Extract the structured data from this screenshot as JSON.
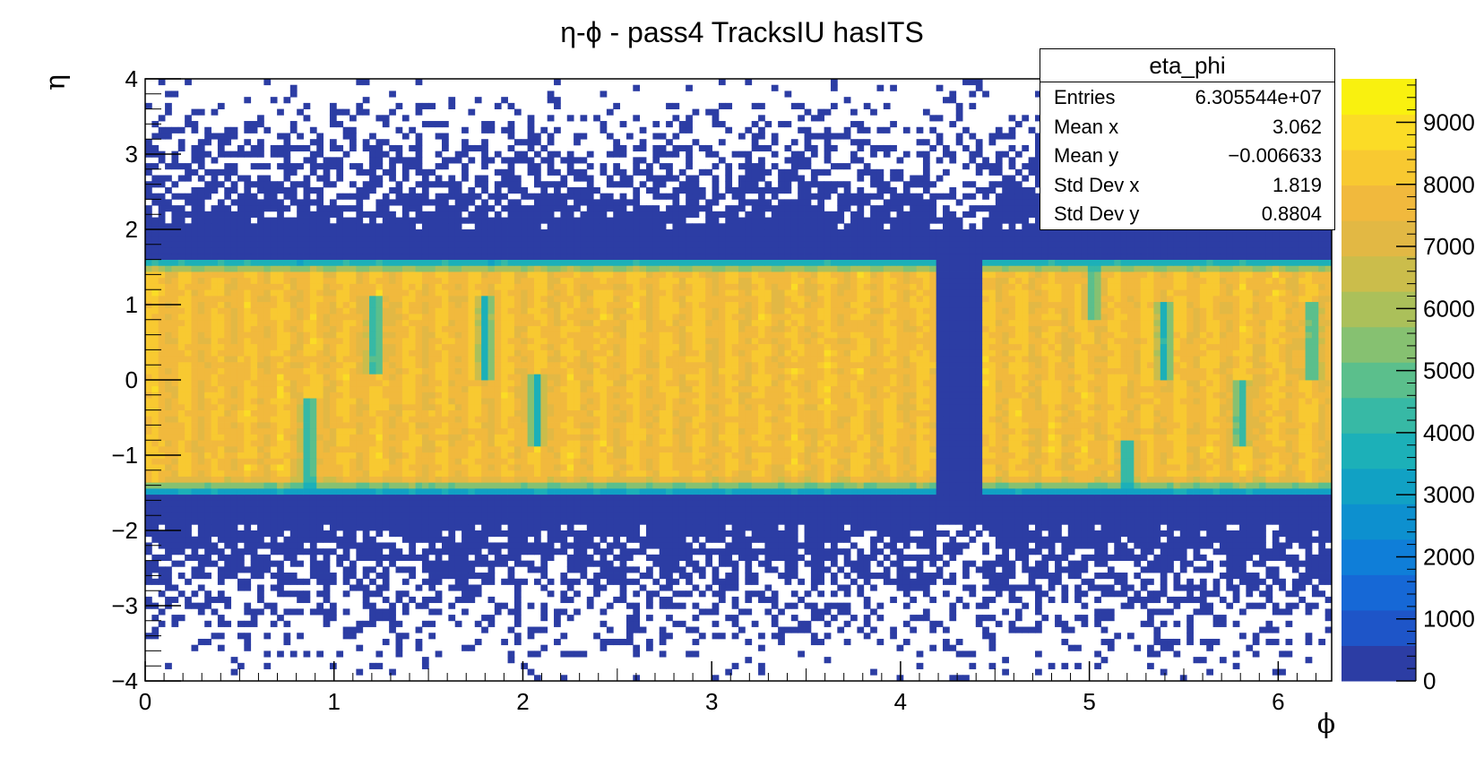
{
  "chart_data": {
    "type": "heatmap",
    "title": "η-ϕ - pass4 TracksIU hasITS",
    "xlabel": "ϕ",
    "ylabel": "η",
    "xlim": [
      0,
      6.283
    ],
    "ylim": [
      -4,
      4
    ],
    "zlim": [
      0,
      9700
    ],
    "x_ticks": [
      "0",
      "1",
      "2",
      "3",
      "4",
      "5",
      "6"
    ],
    "y_ticks": [
      "−4",
      "−3",
      "−2",
      "−1",
      "0",
      "1",
      "2",
      "3",
      "4"
    ],
    "z_ticks": [
      "0",
      "1000",
      "2000",
      "3000",
      "4000",
      "5000",
      "6000",
      "7000",
      "8000",
      "9000"
    ],
    "grid": false,
    "palette": [
      "#2c3da4",
      "#1e55c8",
      "#1668d6",
      "#0f7ed8",
      "#0d90cf",
      "#11a1c4",
      "#1cb0b8",
      "#37b9a5",
      "#5bbf8c",
      "#86c171",
      "#abc05a",
      "#cbbd4b",
      "#e2b844",
      "#f1b93d",
      "#f8c931",
      "#fbdc26",
      "#f9f10f"
    ],
    "description_of_features": {
      "acceptance_band_eta": [
        -1.5,
        1.6
      ],
      "plateau_value": 8700,
      "dead_region_phi": [
        4.2,
        4.45
      ],
      "dip_regions": [
        {
          "phi": 0.87,
          "eta": [
            -1.6,
            -0.2
          ],
          "min": 3000
        },
        {
          "phi": 1.22,
          "eta": [
            0.1,
            1.1
          ],
          "min": 3200
        },
        {
          "phi": 1.8,
          "eta": [
            0.0,
            1.1
          ],
          "min": 3300
        },
        {
          "phi": 2.07,
          "eta": [
            -0.9,
            0.1
          ],
          "min": 3300
        },
        {
          "phi": 5.02,
          "eta": [
            0.8,
            1.6
          ],
          "min": 4000
        },
        {
          "phi": 5.2,
          "eta": [
            -1.6,
            -0.8
          ],
          "min": 2800
        },
        {
          "phi": 5.4,
          "eta": [
            0.0,
            1.0
          ],
          "min": 3500
        },
        {
          "phi": 5.8,
          "eta": [
            -0.9,
            0.0
          ],
          "min": 3500
        },
        {
          "phi": 6.18,
          "eta": [
            0.0,
            1.0
          ],
          "min": 3600
        }
      ]
    }
  },
  "stats": {
    "name": "eta_phi",
    "entries_label": "Entries",
    "entries": "6.305544e+07",
    "meanx_label": "Mean x",
    "meanx": "3.062",
    "meany_label": "Mean y",
    "meany": "−0.006633",
    "stdx_label": "Std Dev x",
    "stdx": "1.819",
    "stdy_label": "Std Dev y",
    "stdy": "0.8804"
  }
}
